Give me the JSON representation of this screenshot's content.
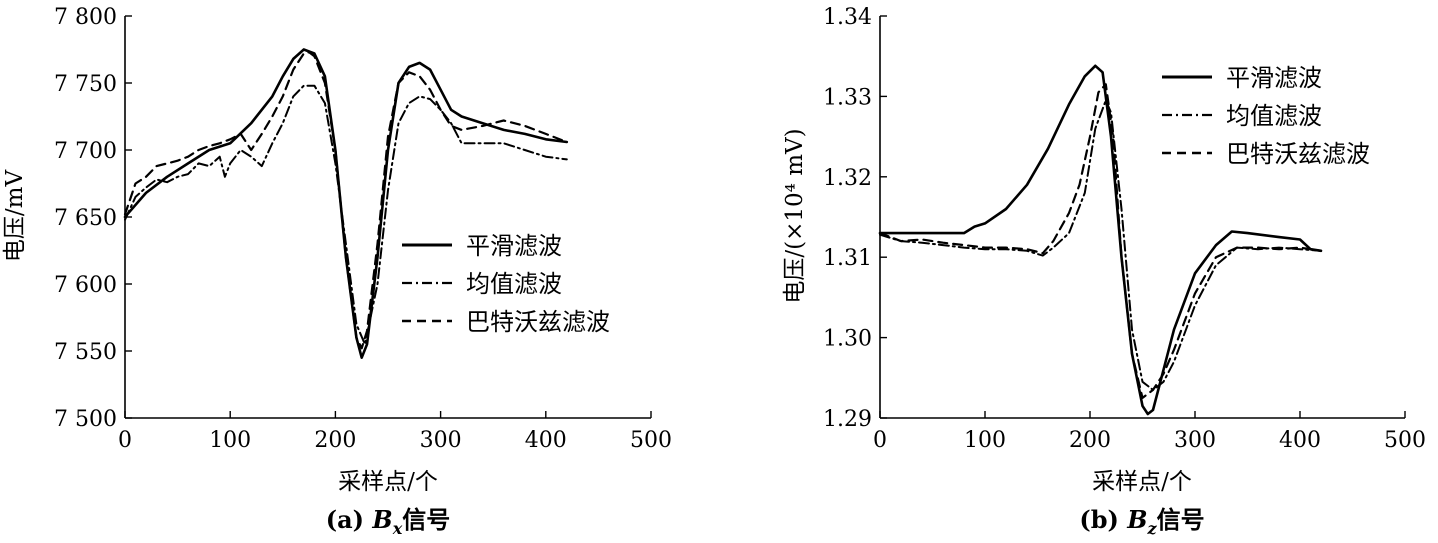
{
  "chart_data": [
    {
      "type": "line",
      "xlabel": "采样点/个",
      "ylabel": "电压/mV",
      "caption": {
        "prefix": "(a) ",
        "symbol": "B",
        "sub": "x",
        "suffix": "信号"
      },
      "xlim": [
        0,
        500
      ],
      "ylim": [
        7500,
        7800
      ],
      "xticks": [
        0,
        100,
        200,
        300,
        400,
        500
      ],
      "xtick_labels": [
        "0",
        "100",
        "200",
        "300",
        "400",
        "500"
      ],
      "yticks": [
        7500,
        7550,
        7600,
        7650,
        7700,
        7750,
        7800
      ],
      "ytick_labels": [
        "7 500",
        "7 550",
        "7 600",
        "7 650",
        "7 700",
        "7 750",
        "7 800"
      ],
      "legend_position": "center-right",
      "series": [
        {
          "name": "平滑滤波",
          "style": "solid",
          "x": [
            0,
            20,
            40,
            60,
            80,
            100,
            120,
            140,
            150,
            160,
            170,
            180,
            190,
            200,
            210,
            220,
            225,
            230,
            240,
            250,
            260,
            270,
            280,
            290,
            300,
            310,
            320,
            340,
            360,
            380,
            400,
            420
          ],
          "y": [
            7650,
            7668,
            7680,
            7690,
            7700,
            7705,
            7720,
            7740,
            7755,
            7768,
            7775,
            7772,
            7755,
            7700,
            7620,
            7560,
            7545,
            7555,
            7620,
            7700,
            7750,
            7762,
            7765,
            7760,
            7745,
            7730,
            7725,
            7720,
            7715,
            7712,
            7708,
            7706
          ]
        },
        {
          "name": "均值滤波",
          "style": "dashdot",
          "x": [
            0,
            10,
            20,
            30,
            40,
            50,
            60,
            70,
            80,
            90,
            95,
            100,
            110,
            120,
            130,
            140,
            150,
            160,
            170,
            180,
            190,
            200,
            210,
            220,
            228,
            240,
            250,
            260,
            270,
            280,
            290,
            300,
            310,
            320,
            340,
            360,
            380,
            400,
            420
          ],
          "y": [
            7648,
            7665,
            7672,
            7678,
            7676,
            7680,
            7682,
            7690,
            7688,
            7695,
            7680,
            7690,
            7700,
            7695,
            7688,
            7705,
            7720,
            7740,
            7748,
            7748,
            7735,
            7690,
            7630,
            7570,
            7555,
            7600,
            7670,
            7720,
            7735,
            7740,
            7738,
            7730,
            7720,
            7705,
            7705,
            7705,
            7700,
            7695,
            7693
          ]
        },
        {
          "name": "巴特沃兹滤波",
          "style": "dashed",
          "x": [
            0,
            10,
            20,
            30,
            40,
            50,
            60,
            70,
            80,
            90,
            100,
            110,
            120,
            130,
            140,
            150,
            160,
            170,
            175,
            180,
            190,
            200,
            210,
            220,
            225,
            230,
            240,
            250,
            260,
            270,
            280,
            290,
            300,
            310,
            320,
            340,
            360,
            380,
            400,
            420
          ],
          "y": [
            7652,
            7675,
            7680,
            7688,
            7690,
            7692,
            7695,
            7700,
            7703,
            7705,
            7708,
            7712,
            7700,
            7712,
            7725,
            7740,
            7760,
            7772,
            7773,
            7770,
            7750,
            7700,
            7620,
            7560,
            7552,
            7565,
            7630,
            7710,
            7750,
            7758,
            7755,
            7745,
            7730,
            7718,
            7715,
            7718,
            7722,
            7718,
            7712,
            7706
          ]
        }
      ]
    },
    {
      "type": "line",
      "xlabel": "采样点/个",
      "ylabel": "电压/(×10⁴ mV)",
      "caption": {
        "prefix": "(b) ",
        "symbol": "B",
        "sub": "z",
        "suffix": "信号"
      },
      "xlim": [
        0,
        500
      ],
      "ylim": [
        1.29,
        1.34
      ],
      "xticks": [
        0,
        100,
        200,
        300,
        400,
        500
      ],
      "xtick_labels": [
        "0",
        "100",
        "200",
        "300",
        "400",
        "500"
      ],
      "yticks": [
        1.29,
        1.3,
        1.31,
        1.32,
        1.33,
        1.34
      ],
      "ytick_labels": [
        "1.29",
        "1.30",
        "1.31",
        "1.32",
        "1.33",
        "1.34"
      ],
      "legend_position": "top-right",
      "series": [
        {
          "name": "平滑滤波",
          "style": "solid",
          "x": [
            0,
            40,
            80,
            90,
            100,
            120,
            140,
            160,
            180,
            195,
            205,
            212,
            220,
            230,
            240,
            250,
            255,
            260,
            270,
            280,
            300,
            320,
            335,
            350,
            380,
            400,
            410,
            420
          ],
          "y": [
            1.313,
            1.313,
            1.313,
            1.3138,
            1.3142,
            1.316,
            1.319,
            1.3235,
            1.329,
            1.3325,
            1.3338,
            1.333,
            1.325,
            1.31,
            1.298,
            1.2915,
            1.2905,
            1.291,
            1.296,
            1.301,
            1.308,
            1.3115,
            1.3132,
            1.313,
            1.3125,
            1.3122,
            1.311,
            1.3108
          ]
        },
        {
          "name": "均值滤波",
          "style": "dashdot",
          "x": [
            0,
            20,
            40,
            60,
            80,
            100,
            120,
            140,
            155,
            165,
            180,
            195,
            205,
            215,
            220,
            230,
            240,
            250,
            260,
            270,
            280,
            300,
            320,
            340,
            360,
            380,
            400,
            420
          ],
          "y": [
            1.3128,
            1.312,
            1.3118,
            1.3115,
            1.3112,
            1.311,
            1.311,
            1.3108,
            1.3102,
            1.3112,
            1.313,
            1.318,
            1.326,
            1.3295,
            1.328,
            1.316,
            1.301,
            1.2945,
            1.2935,
            1.2945,
            1.297,
            1.304,
            1.309,
            1.3112,
            1.311,
            1.3112,
            1.311,
            1.3108
          ]
        },
        {
          "name": "巴特沃兹滤波",
          "style": "dashed",
          "x": [
            0,
            20,
            40,
            60,
            80,
            100,
            120,
            140,
            155,
            165,
            180,
            190,
            200,
            208,
            215,
            222,
            230,
            240,
            250,
            260,
            270,
            280,
            300,
            320,
            340,
            360,
            380,
            400,
            420
          ],
          "y": [
            1.313,
            1.312,
            1.3122,
            1.3118,
            1.3115,
            1.3112,
            1.3112,
            1.311,
            1.3105,
            1.312,
            1.3155,
            1.319,
            1.325,
            1.3305,
            1.3315,
            1.325,
            1.31,
            1.298,
            1.2925,
            1.2935,
            1.2955,
            1.2985,
            1.3055,
            1.31,
            1.3112,
            1.3112,
            1.311,
            1.3112,
            1.3108
          ]
        }
      ]
    }
  ]
}
